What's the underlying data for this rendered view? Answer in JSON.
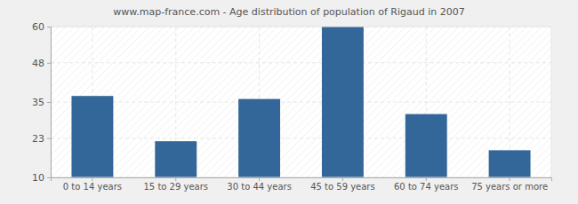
{
  "chart_data": {
    "type": "bar",
    "title": "www.map-france.com - Age distribution of population of Rigaud in 2007",
    "categories": [
      "0 to 14 years",
      "15 to 29 years",
      "30 to 44 years",
      "45 to 59 years",
      "60 to 74 years",
      "75 years or more"
    ],
    "values": [
      37,
      22,
      36,
      60,
      31,
      19
    ],
    "color": "#336699",
    "ylim": [
      10,
      60
    ],
    "yticks": [
      10,
      23,
      35,
      48,
      60
    ],
    "grid": true
  }
}
